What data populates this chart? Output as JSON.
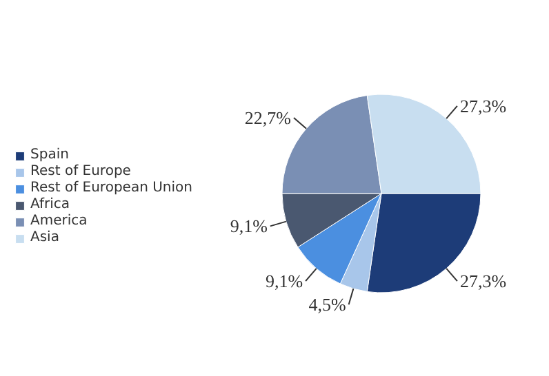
{
  "chart_data": {
    "type": "pie",
    "categories": [
      "Spain",
      "Rest of Europe",
      "Rest of European Union",
      "Africa",
      "America",
      "Asia"
    ],
    "values": [
      27.3,
      4.5,
      9.1,
      9.1,
      22.7,
      27.3
    ],
    "value_labels": [
      "27,3%",
      "4,5%",
      "9,1%",
      "9,1%",
      "22,7%",
      "27,3%"
    ],
    "colors": [
      "#1d3c78",
      "#a8c6ea",
      "#4b8fe0",
      "#4a5870",
      "#7a8fb4",
      "#c8def0"
    ],
    "legend": "left"
  }
}
